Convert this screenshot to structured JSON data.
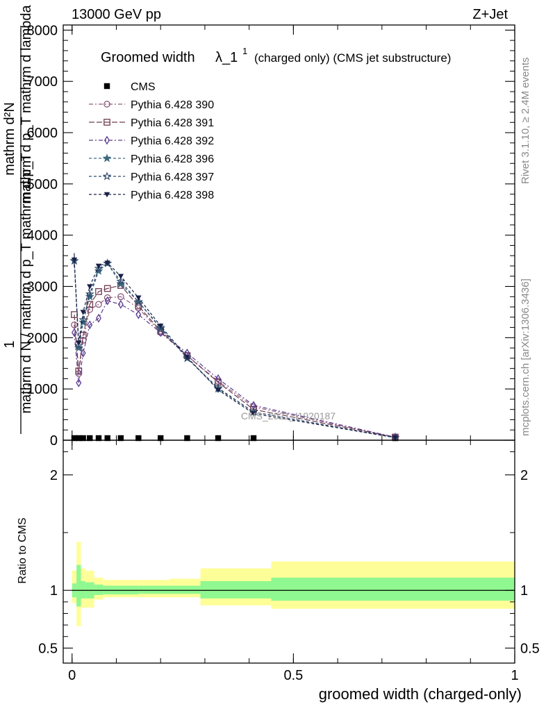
{
  "header": {
    "left": "13000 GeV pp",
    "right": "Z+Jet"
  },
  "side_labels": {
    "rivet": "Rivet 3.1.10, ≥ 2.4M events",
    "mcplots": "mcplots.cern.ch [arXiv:1306.3436]"
  },
  "watermark": "CMS_2021_I1920187",
  "colors": {
    "band_inner": "#90f890",
    "band_outer": "#fefe98",
    "cms": "#000000",
    "p390": "#8a5a7a",
    "p391": "#6e3a4e",
    "p392": "#5a3a8e",
    "p396": "#3e6a80",
    "p397": "#2e4a6a",
    "p398": "#1a2048"
  },
  "chart_data": [
    {
      "type": "line",
      "title": "Groomed width",
      "title_symbol": "λ_1",
      "title_sup": "1",
      "title_suffix": "(charged only) (CMS jet substructure)",
      "ylabel": "1 / mathrm d N / mathrm d p_T mathrm d p_T mathrm d lambda ... mathrm d^2N",
      "ylabel_top": "mathrm d²N",
      "ylabel_mid": "mathrm d p_T mathrm d lambda",
      "ylabel_num": "1",
      "ylabel_den": "mathrm d N / mathrm d p_T mathrm d p_T",
      "xlim": [
        -0.02,
        1.0
      ],
      "ylim": [
        0,
        8100
      ],
      "y_ticks": [
        0,
        1000,
        2000,
        3000,
        4000,
        5000,
        6000,
        7000,
        8000
      ],
      "y_tick_labels": [
        "0",
        "1000",
        "2000",
        "3000",
        "4000",
        "5000",
        "6000",
        "7000",
        "8000"
      ],
      "legend_position": "top-left",
      "x": [
        0.005,
        0.015,
        0.025,
        0.04,
        0.06,
        0.08,
        0.11,
        0.15,
        0.2,
        0.26,
        0.33,
        0.41,
        0.73
      ],
      "series": [
        {
          "name": "CMS",
          "marker": "square",
          "color": "#000000",
          "values": [
            6,
            6,
            6,
            6,
            6,
            6,
            6,
            6,
            6,
            6,
            6,
            6,
            6
          ]
        },
        {
          "name": "Pythia 6.428 390",
          "marker": "circle-open",
          "color": "#8a5a7a",
          "dash": "6,3,2,3",
          "values": [
            2250,
            1300,
            1950,
            2550,
            2650,
            2780,
            2800,
            2580,
            2100,
            1650,
            1150,
            650,
            60
          ]
        },
        {
          "name": "Pythia 6.428 391",
          "marker": "square-open",
          "color": "#6e3a4e",
          "dash": "8,3",
          "values": [
            2450,
            1350,
            2050,
            2650,
            2900,
            2960,
            3020,
            2620,
            2130,
            1650,
            1130,
            600,
            60
          ]
        },
        {
          "name": "Pythia 6.428 392",
          "marker": "diamond-open",
          "color": "#5a3a8e",
          "dash": "6,3,2,3",
          "values": [
            2100,
            1120,
            1700,
            2250,
            2380,
            2720,
            2650,
            2450,
            2100,
            1700,
            1200,
            680,
            60
          ]
        },
        {
          "name": "Pythia 6.428 396",
          "marker": "star-filled",
          "color": "#3e6a80",
          "dash": "4,3",
          "values": [
            3500,
            1800,
            2300,
            2800,
            3300,
            3450,
            3050,
            2700,
            2180,
            1600,
            1000,
            550,
            50
          ]
        },
        {
          "name": "Pythia 6.428 397",
          "marker": "star-open",
          "color": "#2e4a6a",
          "dash": "4,3",
          "values": [
            3500,
            1850,
            2350,
            2850,
            3350,
            3450,
            3100,
            2700,
            2200,
            1600,
            1020,
            550,
            50
          ]
        },
        {
          "name": "Pythia 6.428 398",
          "marker": "triangle-down",
          "color": "#1a2048",
          "dash": "4,3",
          "values": [
            3520,
            1900,
            2500,
            3000,
            3400,
            3460,
            3200,
            2780,
            2230,
            1620,
            980,
            520,
            50
          ]
        }
      ]
    },
    {
      "type": "area",
      "ylabel": "Ratio to CMS",
      "xlabel": "groomed width (charged-only)",
      "xlim": [
        -0.02,
        1.0
      ],
      "x_ticks": [
        0,
        0.5,
        1
      ],
      "x_tick_labels": [
        "0",
        "0.5",
        "1"
      ],
      "ylim": [
        0.37,
        2.3
      ],
      "y_ticks": [
        0.5,
        1,
        2
      ],
      "y_tick_labels": [
        "0.5",
        "1",
        "2"
      ],
      "reference": 1,
      "bins": [
        {
          "lo": 0.0,
          "hi": 0.01,
          "inner": [
            0.94,
            1.06
          ],
          "outer": [
            0.89,
            1.17
          ]
        },
        {
          "lo": 0.01,
          "hi": 0.02,
          "inner": [
            0.86,
            1.22
          ],
          "outer": [
            0.69,
            1.42
          ]
        },
        {
          "lo": 0.02,
          "hi": 0.03,
          "inner": [
            0.93,
            1.08
          ],
          "outer": [
            0.85,
            1.19
          ]
        },
        {
          "lo": 0.03,
          "hi": 0.05,
          "inner": [
            0.93,
            1.07
          ],
          "outer": [
            0.85,
            1.17
          ]
        },
        {
          "lo": 0.05,
          "hi": 0.07,
          "inner": [
            0.96,
            1.05
          ],
          "outer": [
            0.92,
            1.11
          ]
        },
        {
          "lo": 0.07,
          "hi": 0.15,
          "inner": [
            0.965,
            1.04
          ],
          "outer": [
            0.94,
            1.09
          ]
        },
        {
          "lo": 0.15,
          "hi": 0.22,
          "inner": [
            0.97,
            1.04
          ],
          "outer": [
            0.94,
            1.09
          ]
        },
        {
          "lo": 0.22,
          "hi": 0.29,
          "inner": [
            0.97,
            1.04
          ],
          "outer": [
            0.94,
            1.1
          ]
        },
        {
          "lo": 0.29,
          "hi": 0.45,
          "inner": [
            0.93,
            1.08
          ],
          "outer": [
            0.87,
            1.19
          ]
        },
        {
          "lo": 0.45,
          "hi": 1.0,
          "inner": [
            0.91,
            1.11
          ],
          "outer": [
            0.84,
            1.25
          ]
        }
      ]
    }
  ]
}
